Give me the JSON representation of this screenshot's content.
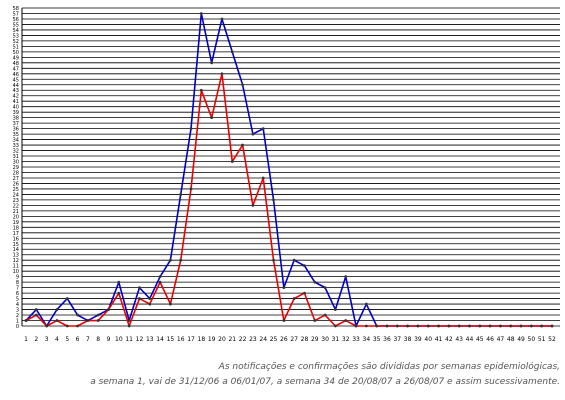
{
  "chart_data": {
    "type": "line",
    "title": "",
    "xlabel": "",
    "ylabel": "",
    "x": [
      1,
      2,
      3,
      4,
      5,
      6,
      7,
      8,
      9,
      10,
      11,
      12,
      13,
      14,
      15,
      16,
      17,
      18,
      19,
      20,
      21,
      22,
      23,
      24,
      25,
      26,
      27,
      28,
      29,
      30,
      31,
      32,
      33,
      34,
      35,
      36,
      37,
      38,
      39,
      40,
      41,
      42,
      43,
      44,
      45,
      46,
      47,
      48,
      49,
      50,
      51,
      52
    ],
    "xlim": [
      1,
      52
    ],
    "ylim": [
      0,
      58
    ],
    "yticks": [
      0,
      1,
      2,
      3,
      4,
      5,
      6,
      7,
      8,
      9,
      10,
      11,
      12,
      13,
      14,
      15,
      16,
      17,
      18,
      19,
      20,
      21,
      22,
      23,
      24,
      25,
      26,
      27,
      28,
      29,
      30,
      31,
      32,
      33,
      34,
      35,
      36,
      37,
      38,
      39,
      40,
      41,
      42,
      43,
      44,
      45,
      46,
      47,
      48,
      49,
      50,
      51,
      52,
      53,
      54,
      55,
      56,
      57,
      58
    ],
    "grid": "horizontal",
    "legend": "none",
    "series": [
      {
        "color": "#0000cc",
        "values": [
          1,
          3,
          0,
          3,
          5,
          2,
          1,
          2,
          3,
          8,
          1,
          7,
          5,
          9,
          12,
          24,
          36,
          57,
          48,
          56,
          50,
          44,
          35,
          36,
          23,
          7,
          12,
          11,
          8,
          7,
          3,
          9,
          0,
          4,
          0,
          0,
          0,
          0,
          0,
          0,
          0,
          0,
          0,
          0,
          0,
          0,
          0,
          0,
          0,
          0,
          0,
          0
        ]
      },
      {
        "color": "#ee0000",
        "values": [
          1,
          2,
          0,
          1,
          0,
          0,
          1,
          1,
          3,
          6,
          0,
          5,
          4,
          8,
          4,
          12,
          25,
          43,
          38,
          46,
          30,
          33,
          22,
          27,
          12,
          1,
          5,
          6,
          1,
          2,
          0,
          1,
          0,
          0,
          0,
          0,
          0,
          0,
          0,
          0,
          0,
          0,
          0,
          0,
          0,
          0,
          0,
          0,
          0,
          0,
          0,
          0
        ]
      }
    ],
    "marker_color": "#333333"
  },
  "caption": {
    "line1": "As notificações e confirmações são divididas por semanas epidemiológicas,",
    "line2": "a semana 1, vai de 31/12/06 a 06/01/07, a semana 34 de 20/08/07 a 26/08/07 e assim sucessivamente."
  }
}
